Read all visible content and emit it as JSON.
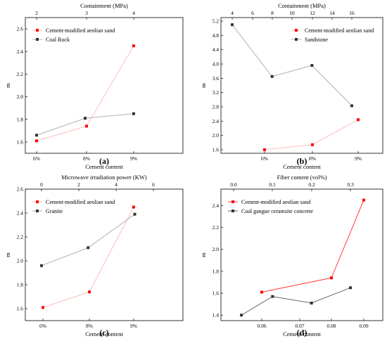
{
  "chart_data": [
    {
      "type": "line",
      "panel_label": "(a)",
      "xlabel": "Cement content",
      "ylabel": "m",
      "x_categories": [
        "6%",
        "8%",
        "9%"
      ],
      "ylim": [
        1.5,
        2.7
      ],
      "yticks": [
        "1.6",
        "1.8",
        "2.0",
        "2.2",
        "2.4",
        "2.6"
      ],
      "top_axis": {
        "label": "Containment (MPa)",
        "ticks": [
          "2",
          "3",
          "4"
        ],
        "range": [
          2,
          4
        ]
      },
      "legend_position": "top-left",
      "series": [
        {
          "name": "Cement-modified aeolian sand",
          "axis": "bottom",
          "color": "#ff0000",
          "line_color": "#ffb6b6",
          "points": [
            {
              "x": "6%",
              "y": 1.61
            },
            {
              "x": "8%",
              "y": 1.74
            },
            {
              "x": "9%",
              "y": 2.45
            }
          ]
        },
        {
          "name": "Coal Rock",
          "axis": "top",
          "color": "#333333",
          "line_color": "#a9a9a9",
          "points": [
            {
              "x": 2,
              "y": 1.66
            },
            {
              "x": 3,
              "y": 1.81
            },
            {
              "x": 4,
              "y": 1.85
            }
          ]
        }
      ]
    },
    {
      "type": "line",
      "panel_label": "(b)",
      "xlabel": "Cement content",
      "ylabel": "m",
      "x_categories": [
        "6%",
        "8%",
        "9%"
      ],
      "ylim": [
        1.5,
        5.3
      ],
      "yticks": [
        "1.6",
        "2.0",
        "2.4",
        "2.8",
        "3.2",
        "3.6",
        "4.0",
        "4.4",
        "4.8",
        "5.2"
      ],
      "top_axis": {
        "label": "Containment (MPa)",
        "ticks": [
          "4",
          "6",
          "8",
          "10",
          "12",
          "14",
          "16"
        ],
        "range": [
          4,
          16
        ]
      },
      "legend_position": "top-right",
      "series": [
        {
          "name": "Cement-modified aeolian sand",
          "axis": "bottom",
          "color": "#ff0000",
          "line_color": "#ffb6b6",
          "points": [
            {
              "x": "6%",
              "y": 1.6
            },
            {
              "x": "8%",
              "y": 1.74
            },
            {
              "x": "9%",
              "y": 2.44
            }
          ]
        },
        {
          "name": "Sandstone",
          "axis": "top",
          "color": "#333333",
          "line_color": "#a9a9a9",
          "points": [
            {
              "x": 4,
              "y": 5.1
            },
            {
              "x": 8,
              "y": 3.65
            },
            {
              "x": 12,
              "y": 3.96
            },
            {
              "x": 16,
              "y": 2.83
            }
          ]
        }
      ]
    },
    {
      "type": "line",
      "panel_label": "(c)",
      "xlabel": "Cement content",
      "ylabel": "m",
      "x_categories": [
        "6%",
        "8%",
        "9%"
      ],
      "ylim": [
        1.5,
        2.6
      ],
      "yticks": [
        "1.6",
        "1.8",
        "2.0",
        "2.2",
        "2.4",
        "2.6"
      ],
      "top_axis": {
        "label": "Microwave irradiation power (KW)",
        "ticks": [
          "0",
          "2",
          "4",
          "6"
        ],
        "range": [
          0,
          6
        ]
      },
      "legend_position": "top-left",
      "series": [
        {
          "name": "Cement-modified aeolian sand",
          "axis": "bottom",
          "color": "#ff0000",
          "line_color": "#ffb6b6",
          "points": [
            {
              "x": "6%",
              "y": 1.61
            },
            {
              "x": "8%",
              "y": 1.74
            },
            {
              "x": "9%",
              "y": 2.45
            }
          ]
        },
        {
          "name": "Granite",
          "axis": "top",
          "color": "#333333",
          "line_color": "#a9a9a9",
          "points": [
            {
              "x": 0,
              "y": 1.96
            },
            {
              "x": 2.5,
              "y": 2.11
            },
            {
              "x": 5,
              "y": 2.39
            }
          ]
        }
      ]
    },
    {
      "type": "line",
      "panel_label": "(d)",
      "xlabel": "Cement content",
      "ylabel": "m",
      "x_categories": [
        "0.06",
        "0.07",
        "0.08",
        "0.09"
      ],
      "ylim": [
        1.35,
        2.55
      ],
      "yticks": [
        "1.4",
        "1.6",
        "1.8",
        "2.0",
        "2.2",
        "2.4"
      ],
      "top_axis": {
        "label": "Fiber content (vol%)",
        "ticks": [
          "0.0",
          "0.1",
          "0.2",
          "0.3"
        ],
        "range": [
          0,
          0.3
        ]
      },
      "legend_position": "top-left",
      "series": [
        {
          "name": "Cement-modified aeolian sand",
          "axis": "bottom",
          "color": "#ff0000",
          "line_color": "#ff2a2a",
          "points": [
            {
              "x": "0.06",
              "y": 1.61
            },
            {
              "x": "0.08",
              "y": 1.74
            },
            {
              "x": "0.09",
              "y": 2.45
            }
          ]
        },
        {
          "name": "Coal gangue ceramsite concrete",
          "axis": "top",
          "color": "#333333",
          "line_color": "#555555",
          "points": [
            {
              "x": 0.02,
              "y": 1.4
            },
            {
              "x": 0.1,
              "y": 1.57
            },
            {
              "x": 0.2,
              "y": 1.51
            },
            {
              "x": 0.3,
              "y": 1.65
            }
          ]
        }
      ]
    }
  ]
}
